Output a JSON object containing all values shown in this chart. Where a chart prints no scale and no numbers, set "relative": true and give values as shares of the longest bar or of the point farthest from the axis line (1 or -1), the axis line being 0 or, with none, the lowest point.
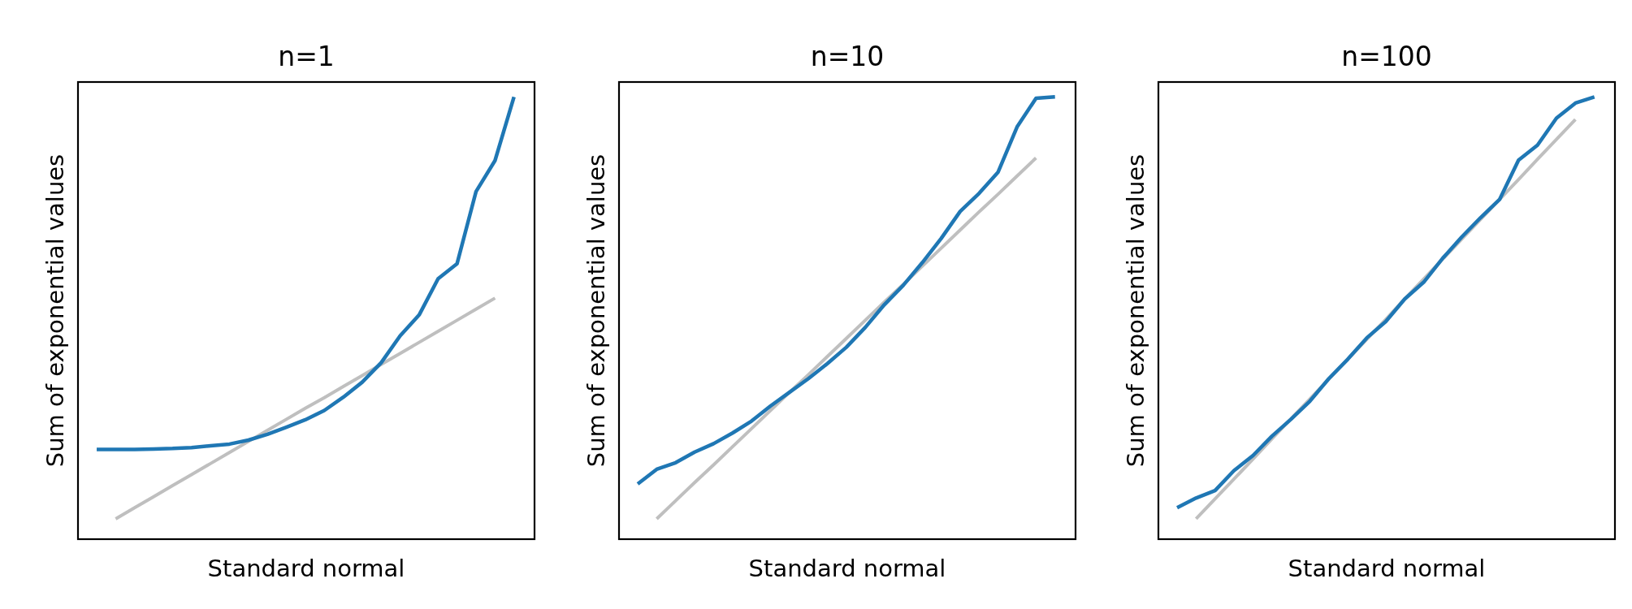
{
  "chart_data": [
    {
      "type": "line",
      "title": "n=1",
      "xlabel": "Standard normal",
      "ylabel": "Sum of exponential values",
      "relative": true,
      "categories": [
        null,
        null,
        null,
        null,
        null,
        null,
        null,
        null,
        null,
        null,
        null,
        null,
        null,
        null,
        null,
        null,
        null,
        null,
        null,
        null,
        null,
        null,
        null
      ],
      "series": [
        {
          "color": "#bfbfbf",
          "values": [
            null,
            0.046,
            0.071,
            0.096,
            0.121,
            0.146,
            0.171,
            0.196,
            0.221,
            0.246,
            0.271,
            0.296,
            0.32,
            0.345,
            0.37,
            0.395,
            0.42,
            0.445,
            0.47,
            0.495,
            0.52,
            0.545,
            null
          ]
        },
        {
          "color": "#1f77b4",
          "values": [
            0.203,
            0.203,
            0.203,
            0.204,
            0.205,
            0.207,
            0.211,
            0.215,
            0.224,
            0.237,
            0.253,
            0.27,
            0.291,
            0.321,
            0.355,
            0.399,
            0.46,
            0.507,
            0.589,
            0.623,
            0.786,
            0.856,
            1
          ]
        }
      ]
    },
    {
      "type": "line",
      "title": "n=10",
      "xlabel": "Standard normal",
      "ylabel": "Sum of exponential values",
      "relative": true,
      "categories": [
        null,
        null,
        null,
        null,
        null,
        null,
        null,
        null,
        null,
        null,
        null,
        null,
        null,
        null,
        null,
        null,
        null,
        null,
        null,
        null,
        null,
        null,
        null
      ],
      "series": [
        {
          "color": "#bfbfbf",
          "values": [
            null,
            0.046,
            0.087,
            0.128,
            0.168,
            0.209,
            0.25,
            0.291,
            0.332,
            0.372,
            0.413,
            0.454,
            0.495,
            0.536,
            0.576,
            0.617,
            0.658,
            0.699,
            0.74,
            0.78,
            0.821,
            0.862,
            null
          ]
        },
        {
          "color": "#1f77b4",
          "values": [
            0.125,
            0.158,
            0.173,
            0.197,
            0.216,
            0.24,
            0.267,
            0.301,
            0.332,
            0.363,
            0.397,
            0.434,
            0.479,
            0.53,
            0.574,
            0.625,
            0.68,
            0.741,
            0.782,
            0.83,
            0.932,
            0.997,
            1
          ]
        }
      ]
    },
    {
      "type": "line",
      "title": "n=100",
      "xlabel": "Standard normal",
      "ylabel": "Sum of exponential values",
      "relative": true,
      "categories": [
        null,
        null,
        null,
        null,
        null,
        null,
        null,
        null,
        null,
        null,
        null,
        null,
        null,
        null,
        null,
        null,
        null,
        null,
        null,
        null,
        null,
        null,
        null
      ],
      "series": [
        {
          "color": "#bfbfbf",
          "values": [
            null,
            0.046,
            0.091,
            0.136,
            0.181,
            0.227,
            0.272,
            0.317,
            0.362,
            0.407,
            0.452,
            0.497,
            0.543,
            0.588,
            0.633,
            0.678,
            0.723,
            0.768,
            0.813,
            0.859,
            0.904,
            0.949,
            null
          ]
        },
        {
          "color": "#1f77b4",
          "values": [
            0.071,
            0.093,
            0.11,
            0.155,
            0.189,
            0.233,
            0.271,
            0.312,
            0.363,
            0.407,
            0.455,
            0.492,
            0.543,
            0.581,
            0.635,
            0.683,
            0.727,
            0.768,
            0.857,
            0.891,
            0.952,
            0.986,
            1
          ]
        }
      ]
    }
  ]
}
